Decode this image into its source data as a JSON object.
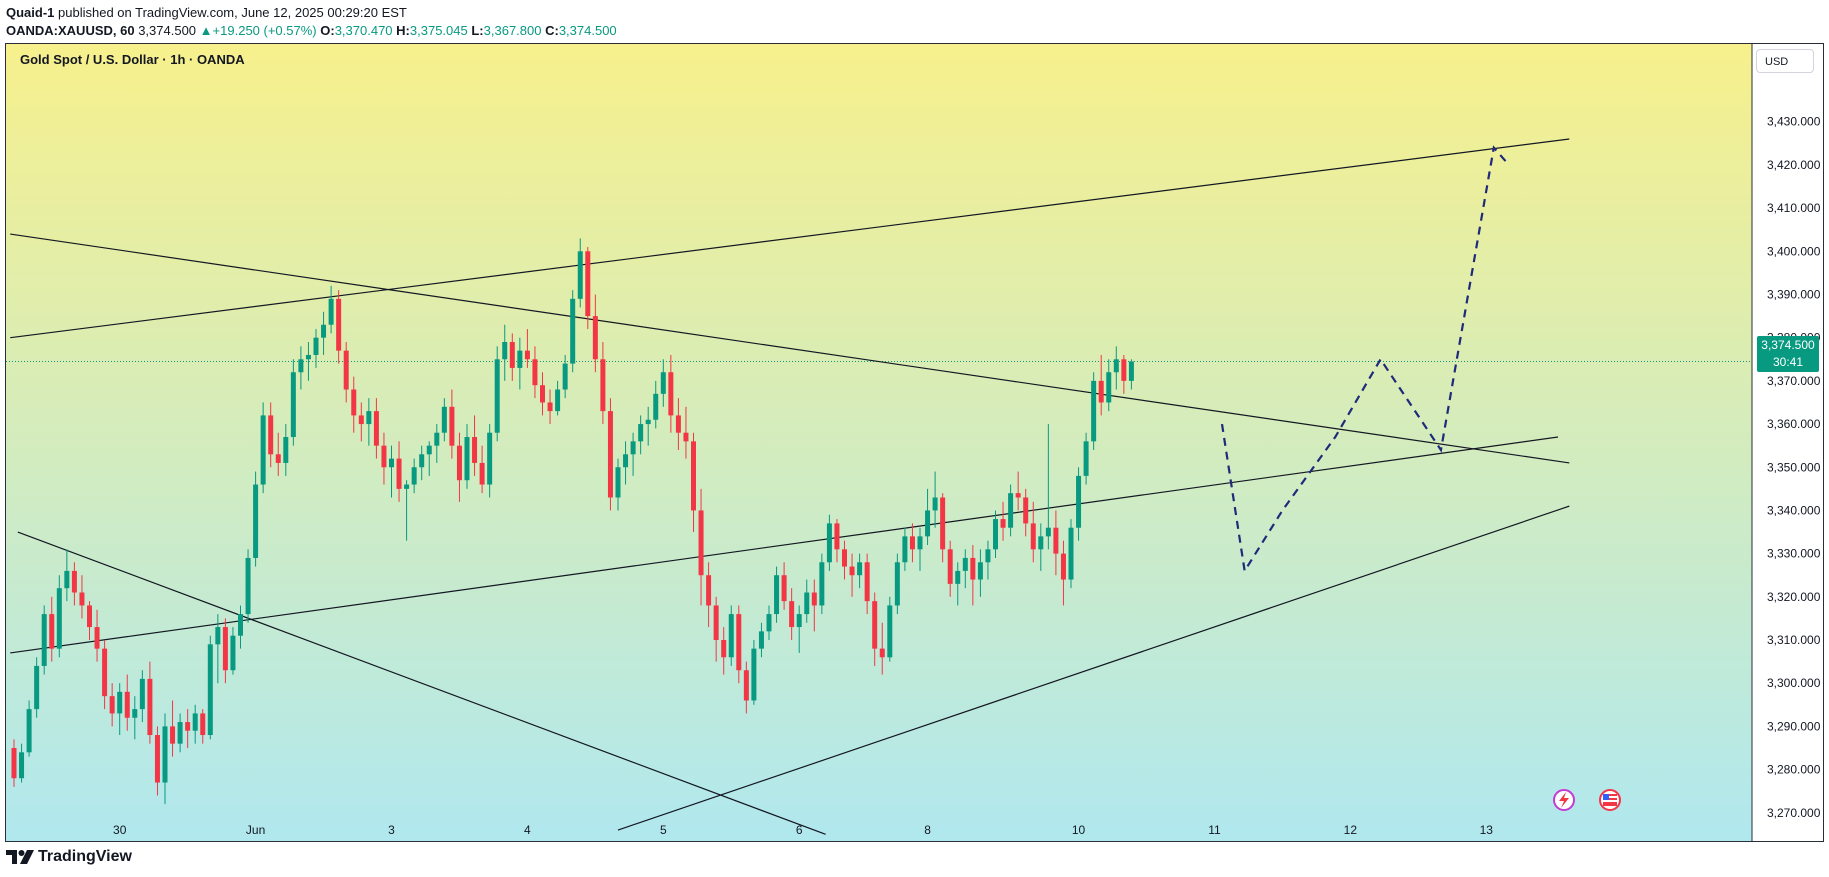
{
  "header": {
    "publisher": "Quaid-1",
    "published_text": "published on TradingView.com, June 12, 2025 00:29:20 EST",
    "symbol": "OANDA:XAUUSD, 60",
    "last": "3,374.500",
    "change": "+19.250 (+0.57%)",
    "open_label": "O:",
    "open": "3,370.470",
    "high_label": "H:",
    "high": "3,375.045",
    "low_label": "L:",
    "low": "3,367.800",
    "close_label": "C:",
    "close": "3,374.500"
  },
  "chart_title": "Gold Spot / U.S. Dollar · 1h · OANDA",
  "currency": "USD",
  "price_tag": {
    "price": "3,374.500",
    "countdown": "30:41"
  },
  "brand": "TradingView",
  "colors": {
    "up": "#089981",
    "down": "#f23645",
    "bg_top": "#f7f08c",
    "bg_bottom": "#b0e8ef",
    "annotation": "#1f2a7a"
  },
  "chart_data": {
    "type": "candlestick",
    "title": "Gold Spot / U.S. Dollar · 1h · OANDA",
    "ylim": [
      3263,
      3448
    ],
    "y_ticks": [
      "3,270.000",
      "3,280.000",
      "3,290.000",
      "3,300.000",
      "3,310.000",
      "3,320.000",
      "3,330.000",
      "3,340.000",
      "3,350.000",
      "3,360.000",
      "3,370.000",
      "3,380.000",
      "3,390.000",
      "3,400.000",
      "3,410.000",
      "3,420.000",
      "3,430.000"
    ],
    "y_tick_values": [
      3270,
      3280,
      3290,
      3300,
      3310,
      3320,
      3330,
      3340,
      3350,
      3360,
      3370,
      3380,
      3390,
      3400,
      3410,
      3420,
      3430
    ],
    "x_tick_labels": [
      "30",
      "Jun",
      "3",
      "4",
      "5",
      "6",
      "8",
      "10",
      "11",
      "12",
      "13"
    ],
    "x_tick_index": [
      14,
      32,
      50,
      68,
      86,
      104,
      121,
      141,
      159,
      177,
      195
    ],
    "last_price": 3374.5,
    "ohlc": [
      [
        3285,
        3287,
        3276,
        3278
      ],
      [
        3278,
        3286,
        3277,
        3284
      ],
      [
        3284,
        3296,
        3283,
        3294
      ],
      [
        3294,
        3306,
        3292,
        3304
      ],
      [
        3304,
        3318,
        3302,
        3316
      ],
      [
        3316,
        3320,
        3305,
        3308
      ],
      [
        3308,
        3325,
        3306,
        3322
      ],
      [
        3322,
        3331,
        3319,
        3326
      ],
      [
        3326,
        3328,
        3318,
        3321
      ],
      [
        3321,
        3325,
        3315,
        3318
      ],
      [
        3318,
        3319,
        3310,
        3313
      ],
      [
        3313,
        3317,
        3305,
        3308
      ],
      [
        3308,
        3310,
        3294,
        3297
      ],
      [
        3297,
        3300,
        3290,
        3293
      ],
      [
        3293,
        3300,
        3288,
        3298
      ],
      [
        3298,
        3302,
        3289,
        3292
      ],
      [
        3292,
        3297,
        3287,
        3294
      ],
      [
        3294,
        3303,
        3291,
        3301
      ],
      [
        3301,
        3305,
        3286,
        3288
      ],
      [
        3288,
        3290,
        3274,
        3277
      ],
      [
        3277,
        3293,
        3272,
        3290
      ],
      [
        3290,
        3296,
        3283,
        3286
      ],
      [
        3286,
        3293,
        3284,
        3291
      ],
      [
        3291,
        3294,
        3285,
        3289
      ],
      [
        3289,
        3295,
        3286,
        3293
      ],
      [
        3293,
        3294,
        3286,
        3288
      ],
      [
        3288,
        3311,
        3287,
        3309
      ],
      [
        3309,
        3316,
        3300,
        3313
      ],
      [
        3313,
        3315,
        3300,
        3303
      ],
      [
        3303,
        3313,
        3302,
        3311
      ],
      [
        3311,
        3318,
        3308,
        3316
      ],
      [
        3316,
        3331,
        3314,
        3329
      ],
      [
        3329,
        3349,
        3327,
        3346
      ],
      [
        3346,
        3365,
        3344,
        3362
      ],
      [
        3362,
        3365,
        3350,
        3353
      ],
      [
        3353,
        3358,
        3348,
        3351
      ],
      [
        3351,
        3360,
        3348,
        3357
      ],
      [
        3357,
        3375,
        3355,
        3372
      ],
      [
        3372,
        3378,
        3368,
        3375
      ],
      [
        3375,
        3379,
        3370,
        3376
      ],
      [
        3376,
        3382,
        3373,
        3380
      ],
      [
        3380,
        3386,
        3376,
        3383
      ],
      [
        3383,
        3392,
        3381,
        3389
      ],
      [
        3389,
        3391,
        3374,
        3377
      ],
      [
        3377,
        3379,
        3365,
        3368
      ],
      [
        3368,
        3371,
        3358,
        3362
      ],
      [
        3362,
        3365,
        3356,
        3360
      ],
      [
        3360,
        3366,
        3355,
        3363
      ],
      [
        3363,
        3366,
        3352,
        3355
      ],
      [
        3355,
        3358,
        3346,
        3350
      ],
      [
        3350,
        3355,
        3343,
        3352
      ],
      [
        3352,
        3356,
        3342,
        3345
      ],
      [
        3345,
        3347,
        3333,
        3346
      ],
      [
        3346,
        3352,
        3344,
        3350
      ],
      [
        3350,
        3355,
        3347,
        3353
      ],
      [
        3353,
        3356,
        3348,
        3355
      ],
      [
        3355,
        3360,
        3351,
        3358
      ],
      [
        3358,
        3366,
        3356,
        3364
      ],
      [
        3364,
        3368,
        3352,
        3355
      ],
      [
        3355,
        3358,
        3342,
        3347
      ],
      [
        3347,
        3360,
        3345,
        3357
      ],
      [
        3357,
        3362,
        3348,
        3351
      ],
      [
        3351,
        3355,
        3344,
        3346
      ],
      [
        3346,
        3360,
        3343,
        3358
      ],
      [
        3358,
        3378,
        3356,
        3375
      ],
      [
        3375,
        3383,
        3370,
        3379
      ],
      [
        3379,
        3381,
        3370,
        3373
      ],
      [
        3373,
        3380,
        3368,
        3377
      ],
      [
        3377,
        3382,
        3373,
        3375
      ],
      [
        3375,
        3378,
        3366,
        3369
      ],
      [
        3369,
        3372,
        3362,
        3365
      ],
      [
        3365,
        3368,
        3360,
        3363
      ],
      [
        3363,
        3370,
        3362,
        3368
      ],
      [
        3368,
        3376,
        3366,
        3374
      ],
      [
        3374,
        3391,
        3372,
        3389
      ],
      [
        3389,
        3403,
        3387,
        3400
      ],
      [
        3400,
        3401,
        3382,
        3385
      ],
      [
        3385,
        3390,
        3372,
        3375
      ],
      [
        3375,
        3379,
        3360,
        3363
      ],
      [
        3363,
        3366,
        3340,
        3343
      ],
      [
        3343,
        3352,
        3340,
        3350
      ],
      [
        3350,
        3356,
        3346,
        3353
      ],
      [
        3353,
        3358,
        3348,
        3356
      ],
      [
        3356,
        3362,
        3353,
        3360
      ],
      [
        3360,
        3364,
        3355,
        3361
      ],
      [
        3361,
        3370,
        3359,
        3367
      ],
      [
        3367,
        3375,
        3364,
        3372
      ],
      [
        3372,
        3376,
        3358,
        3362
      ],
      [
        3362,
        3366,
        3354,
        3358
      ],
      [
        3358,
        3364,
        3352,
        3356
      ],
      [
        3356,
        3358,
        3335,
        3340
      ],
      [
        3340,
        3345,
        3318,
        3325
      ],
      [
        3325,
        3328,
        3313,
        3318
      ],
      [
        3318,
        3320,
        3305,
        3310
      ],
      [
        3310,
        3313,
        3302,
        3306
      ],
      [
        3306,
        3318,
        3304,
        3316
      ],
      [
        3316,
        3318,
        3300,
        3303
      ],
      [
        3303,
        3305,
        3293,
        3296
      ],
      [
        3296,
        3310,
        3295,
        3308
      ],
      [
        3308,
        3314,
        3306,
        3312
      ],
      [
        3312,
        3318,
        3310,
        3316
      ],
      [
        3316,
        3327,
        3314,
        3325
      ],
      [
        3325,
        3328,
        3317,
        3319
      ],
      [
        3319,
        3322,
        3310,
        3313
      ],
      [
        3313,
        3318,
        3307,
        3316
      ],
      [
        3316,
        3324,
        3314,
        3321
      ],
      [
        3321,
        3324,
        3312,
        3318
      ],
      [
        3318,
        3330,
        3316,
        3328
      ],
      [
        3328,
        3339,
        3326,
        3337
      ],
      [
        3337,
        3338,
        3328,
        3331
      ],
      [
        3331,
        3333,
        3324,
        3327
      ],
      [
        3327,
        3330,
        3320,
        3325
      ],
      [
        3325,
        3330,
        3322,
        3328
      ],
      [
        3328,
        3330,
        3316,
        3319
      ],
      [
        3319,
        3321,
        3304,
        3308
      ],
      [
        3308,
        3314,
        3302,
        3306
      ],
      [
        3306,
        3320,
        3305,
        3318
      ],
      [
        3318,
        3330,
        3316,
        3328
      ],
      [
        3328,
        3336,
        3326,
        3334
      ],
      [
        3334,
        3337,
        3328,
        3331
      ],
      [
        3331,
        3336,
        3326,
        3334
      ],
      [
        3334,
        3345,
        3332,
        3340
      ],
      [
        3340,
        3349,
        3336,
        3343
      ],
      [
        3343,
        3344,
        3328,
        3331
      ],
      [
        3331,
        3333,
        3320,
        3323
      ],
      [
        3323,
        3328,
        3318,
        3326
      ],
      [
        3326,
        3331,
        3322,
        3329
      ],
      [
        3329,
        3332,
        3318,
        3324
      ],
      [
        3324,
        3331,
        3320,
        3328
      ],
      [
        3328,
        3333,
        3324,
        3331
      ],
      [
        3331,
        3340,
        3329,
        3338
      ],
      [
        3338,
        3342,
        3333,
        3336
      ],
      [
        3336,
        3346,
        3334,
        3344
      ],
      [
        3344,
        3349,
        3340,
        3343
      ],
      [
        3343,
        3345,
        3334,
        3337
      ],
      [
        3337,
        3342,
        3328,
        3331
      ],
      [
        3331,
        3337,
        3326,
        3334
      ],
      [
        3334,
        3360,
        3331,
        3336
      ],
      [
        3336,
        3340,
        3325,
        3330
      ],
      [
        3330,
        3333,
        3318,
        3324
      ],
      [
        3324,
        3338,
        3322,
        3336
      ],
      [
        3336,
        3350,
        3333,
        3348
      ],
      [
        3348,
        3358,
        3346,
        3356
      ],
      [
        3356,
        3372,
        3354,
        3370
      ],
      [
        3370,
        3376,
        3362,
        3365
      ],
      [
        3365,
        3375,
        3363,
        3372
      ],
      [
        3372,
        3378,
        3368,
        3375
      ],
      [
        3375,
        3376,
        3367,
        3370
      ],
      [
        3370,
        3375,
        3368,
        3374.5
      ]
    ],
    "trendlines": [
      {
        "name": "upper-rising-line",
        "from": [
          -0.5,
          3380
        ],
        "to": [
          206,
          3426
        ]
      },
      {
        "name": "descending-resistance-line",
        "from": [
          -0.5,
          3404
        ],
        "to": [
          206,
          3351
        ]
      },
      {
        "name": "middle-rising-line",
        "from": [
          -0.5,
          3307
        ],
        "to": [
          204.5,
          3357
        ]
      },
      {
        "name": "lower-support-line",
        "from": [
          80,
          3266
        ],
        "to": [
          206,
          3341
        ]
      },
      {
        "name": "early-descending-line",
        "from": [
          0.5,
          3335
        ],
        "to": [
          107.5,
          3265
        ]
      }
    ],
    "projection": [
      [
        160,
        3360
      ],
      [
        163,
        3326
      ],
      [
        168,
        3340
      ],
      [
        175,
        3357
      ],
      [
        181,
        3375
      ],
      [
        189,
        3354
      ],
      [
        196,
        3424
      ],
      [
        198,
        3420
      ]
    ]
  }
}
